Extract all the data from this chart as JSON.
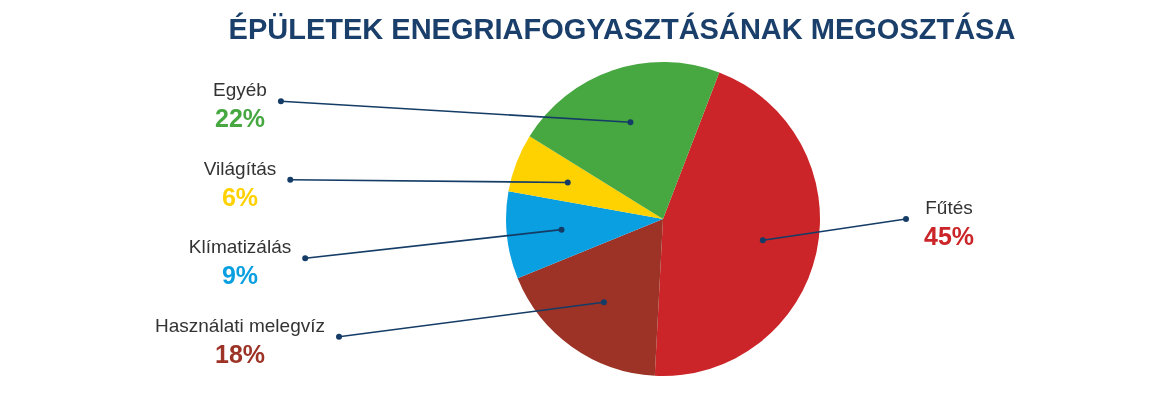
{
  "chart_data": {
    "type": "pie",
    "title": "ÉPÜLETEK ENEGRIAFOGYASZTÁSÁNAK MEGOSZTÁSA",
    "categories": [
      "Fűtés",
      "Használati melegvíz",
      "Klímatizálás",
      "Világítás",
      "Egyéb"
    ],
    "values": [
      45,
      18,
      9,
      6,
      22
    ],
    "colors": [
      "#cb2529",
      "#9c3326",
      "#0a9fe0",
      "#fed100",
      "#47a741"
    ],
    "value_labels": [
      "45%",
      "18%",
      "9%",
      "6%",
      "22%"
    ]
  }
}
